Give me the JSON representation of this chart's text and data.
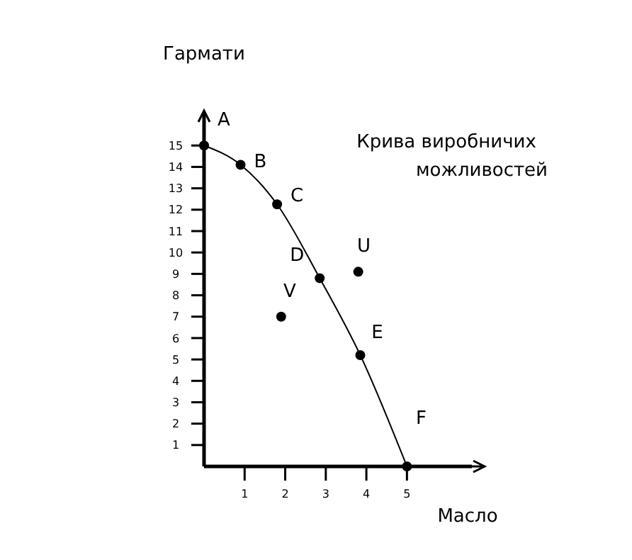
{
  "chart_data": {
    "type": "line",
    "title": "Крива виробничих можливостей",
    "xlabel": "Масло",
    "ylabel": "Гармати",
    "xlim": [
      0,
      6.6
    ],
    "ylim": [
      0,
      16.5
    ],
    "xticks": [
      1,
      2,
      3,
      4,
      5
    ],
    "yticks": [
      1,
      2,
      3,
      4,
      5,
      6,
      7,
      8,
      9,
      10,
      11,
      12,
      13,
      14,
      15
    ],
    "grid": false,
    "marker": "circle",
    "line_style": "solid",
    "series": [
      {
        "color": "#000000",
        "x": [
          0,
          0.9,
          1.8,
          2.85,
          3.85,
          5
        ],
        "values": [
          15,
          14.1,
          12.25,
          8.8,
          5.2,
          0
        ]
      },
      {
        "type": "scatter",
        "color": "#000000",
        "x": [
          3.8,
          1.9
        ],
        "values": [
          9.1,
          7.0
        ]
      }
    ],
    "annotations": [
      {
        "text": "A",
        "x": 0,
        "y": 15
      },
      {
        "text": "B",
        "x": 0.9,
        "y": 14.1
      },
      {
        "text": "C",
        "x": 1.8,
        "y": 12.25
      },
      {
        "text": "D",
        "x": 2.85,
        "y": 8.8
      },
      {
        "text": "E",
        "x": 3.85,
        "y": 5.2
      },
      {
        "text": "F",
        "x": 5,
        "y": 0
      },
      {
        "text": "U",
        "x": 3.8,
        "y": 9.1
      },
      {
        "text": "V",
        "x": 1.9,
        "y": 7.0
      }
    ]
  }
}
